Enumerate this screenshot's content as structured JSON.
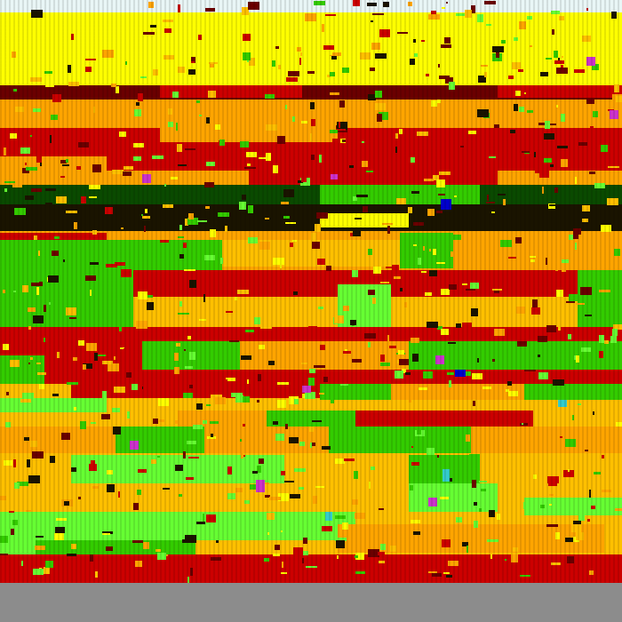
{
  "image": {
    "description": "",
    "colors": {
      "sky": "#e9f6f6",
      "yellow": "#ffff00",
      "orange": "#ffa500",
      "amber": "#ffc000",
      "red": "#cc0000",
      "dark_red": "#6b0000",
      "green": "#33cc00",
      "lime": "#66ff33",
      "dark_green": "#0a4a00",
      "black": "#1a1400",
      "gray": "#8c8c8c",
      "blue": "#0000cc",
      "magenta": "#cc33cc",
      "cyan": "#33cccc"
    }
  }
}
